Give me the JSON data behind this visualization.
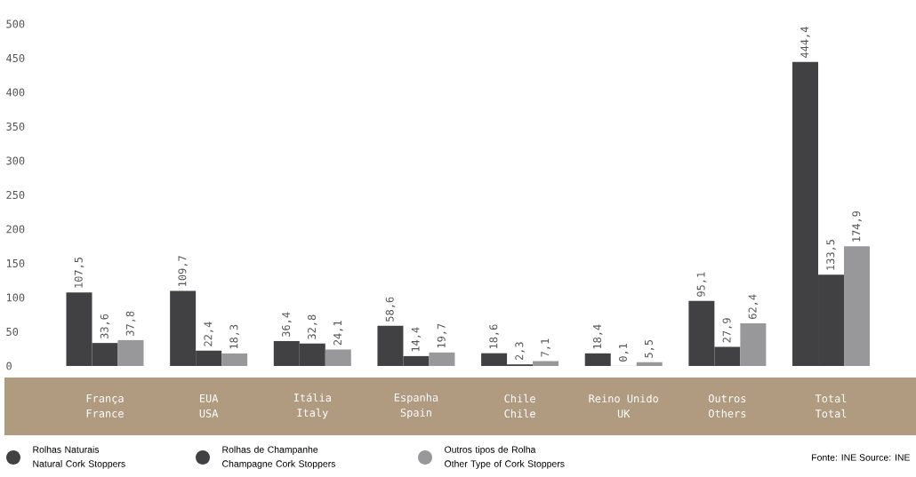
{
  "chart_data": {
    "type": "bar",
    "categories": [
      "França\nFrance",
      "EUA\nUSA",
      "Itália\nItaly",
      "Espanha\nSpain",
      "Chile\nChile",
      "Reino Unido\nUK",
      "Outros\nOthers",
      "Total\nTotal"
    ],
    "series": [
      {
        "name": "Rolhas Naturais\nNatural Cork Stoppers",
        "color": "#414143",
        "values": [
          107.5,
          109.7,
          36.4,
          58.6,
          18.6,
          18.4,
          95.1,
          444.4
        ],
        "value_labels": [
          "107,5",
          "109,7",
          "36,4",
          "58,6",
          "18,6",
          "18,4",
          "95,1",
          "444,4"
        ]
      },
      {
        "name": "Rolhas de Champanhe\nChampagne Cork Stoppers",
        "color": "#414143",
        "values": [
          33.6,
          22.4,
          32.8,
          14.4,
          2.3,
          0.1,
          27.9,
          133.5
        ],
        "value_labels": [
          "33,6",
          "22,4",
          "32,8",
          "14,4",
          "2,3",
          "0,1",
          "27,9",
          "133,5"
        ]
      },
      {
        "name": "Outros tipos de Rolha\nOther Type of Cork Stoppers",
        "color": "#98989b",
        "values": [
          37.8,
          18.3,
          24.1,
          19.7,
          7.1,
          5.5,
          62.4,
          174.9
        ],
        "value_labels": [
          "37,8",
          "18,3",
          "24,1",
          "19,7",
          "7,1",
          "5,5",
          "62,4",
          "174,9"
        ]
      }
    ],
    "ylim": [
      0,
      500
    ],
    "yticks": [
      0,
      50,
      100,
      150,
      200,
      250,
      300,
      350,
      400,
      450,
      500
    ],
    "legend": "bottom left",
    "annotations": [
      "Fonte: INE Source: INE"
    ]
  }
}
